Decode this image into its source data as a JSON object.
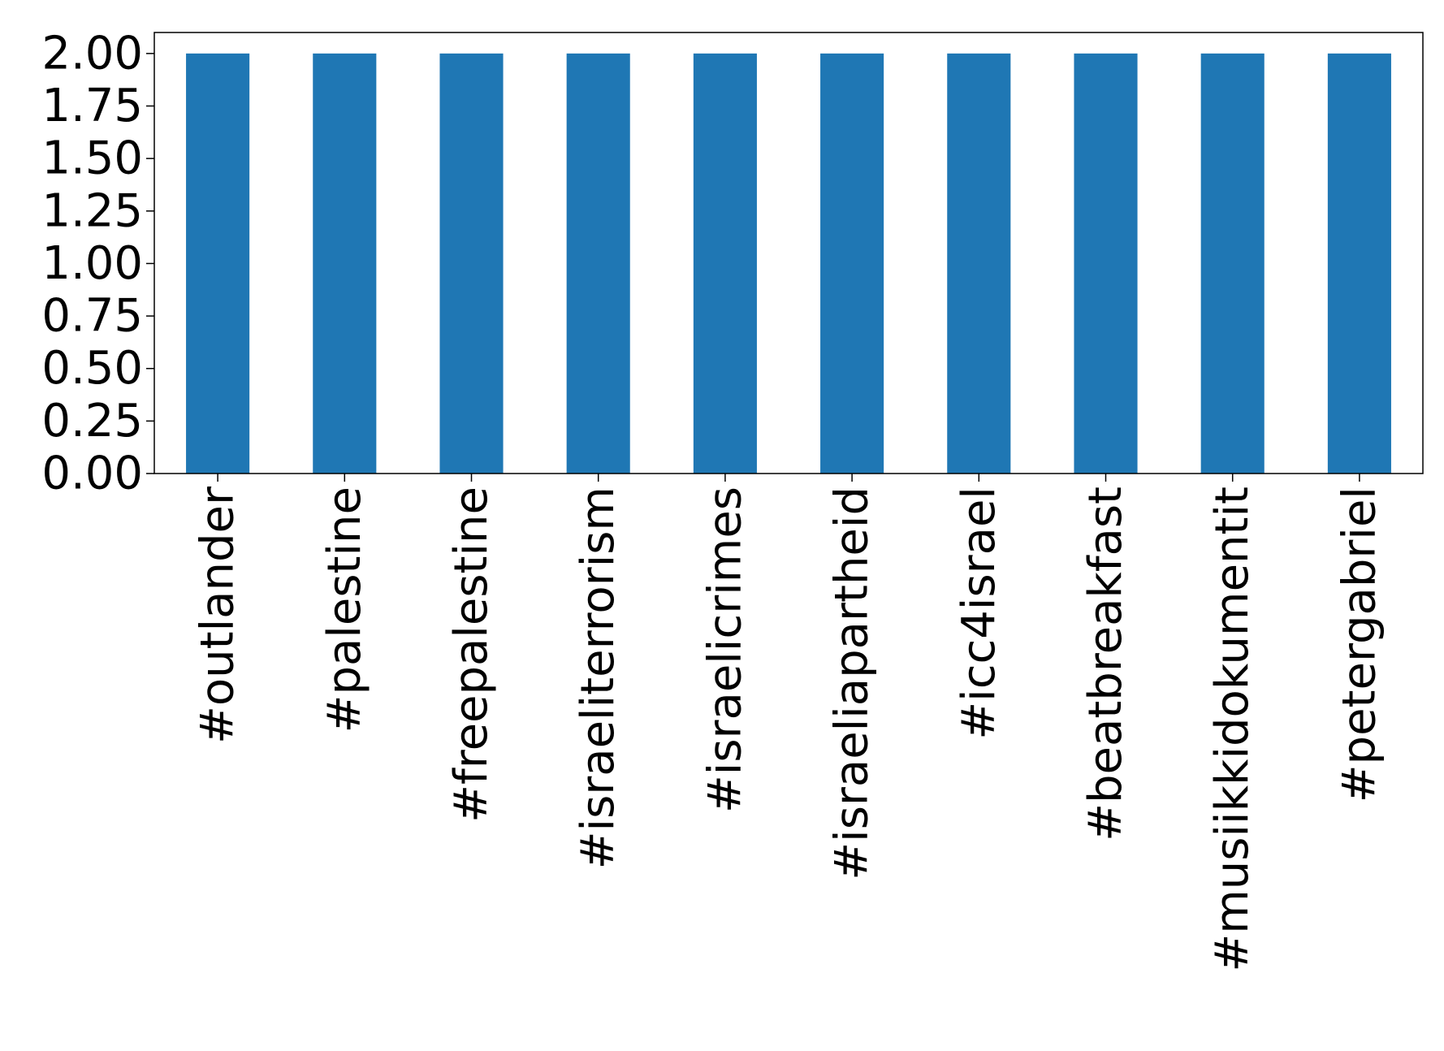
{
  "chart_data": {
    "type": "bar",
    "title": "",
    "xlabel": "",
    "ylabel": "",
    "categories": [
      "#outlander",
      "#palestine",
      "#freepalestine",
      "#israeliterrorism",
      "#israelicrimes",
      "#israeliapartheid",
      "#icc4israel",
      "#beatbreakfast",
      "#musiikkidokumentit",
      "#petergabriel"
    ],
    "values": [
      2,
      2,
      2,
      2,
      2,
      2,
      2,
      2,
      2,
      2
    ],
    "ylim": [
      0,
      2.1
    ],
    "yticks": [
      "0.00",
      "0.25",
      "0.50",
      "0.75",
      "1.00",
      "1.25",
      "1.50",
      "1.75",
      "2.00"
    ],
    "grid": false,
    "legend": "none",
    "bar_color": "#1f77b4"
  }
}
